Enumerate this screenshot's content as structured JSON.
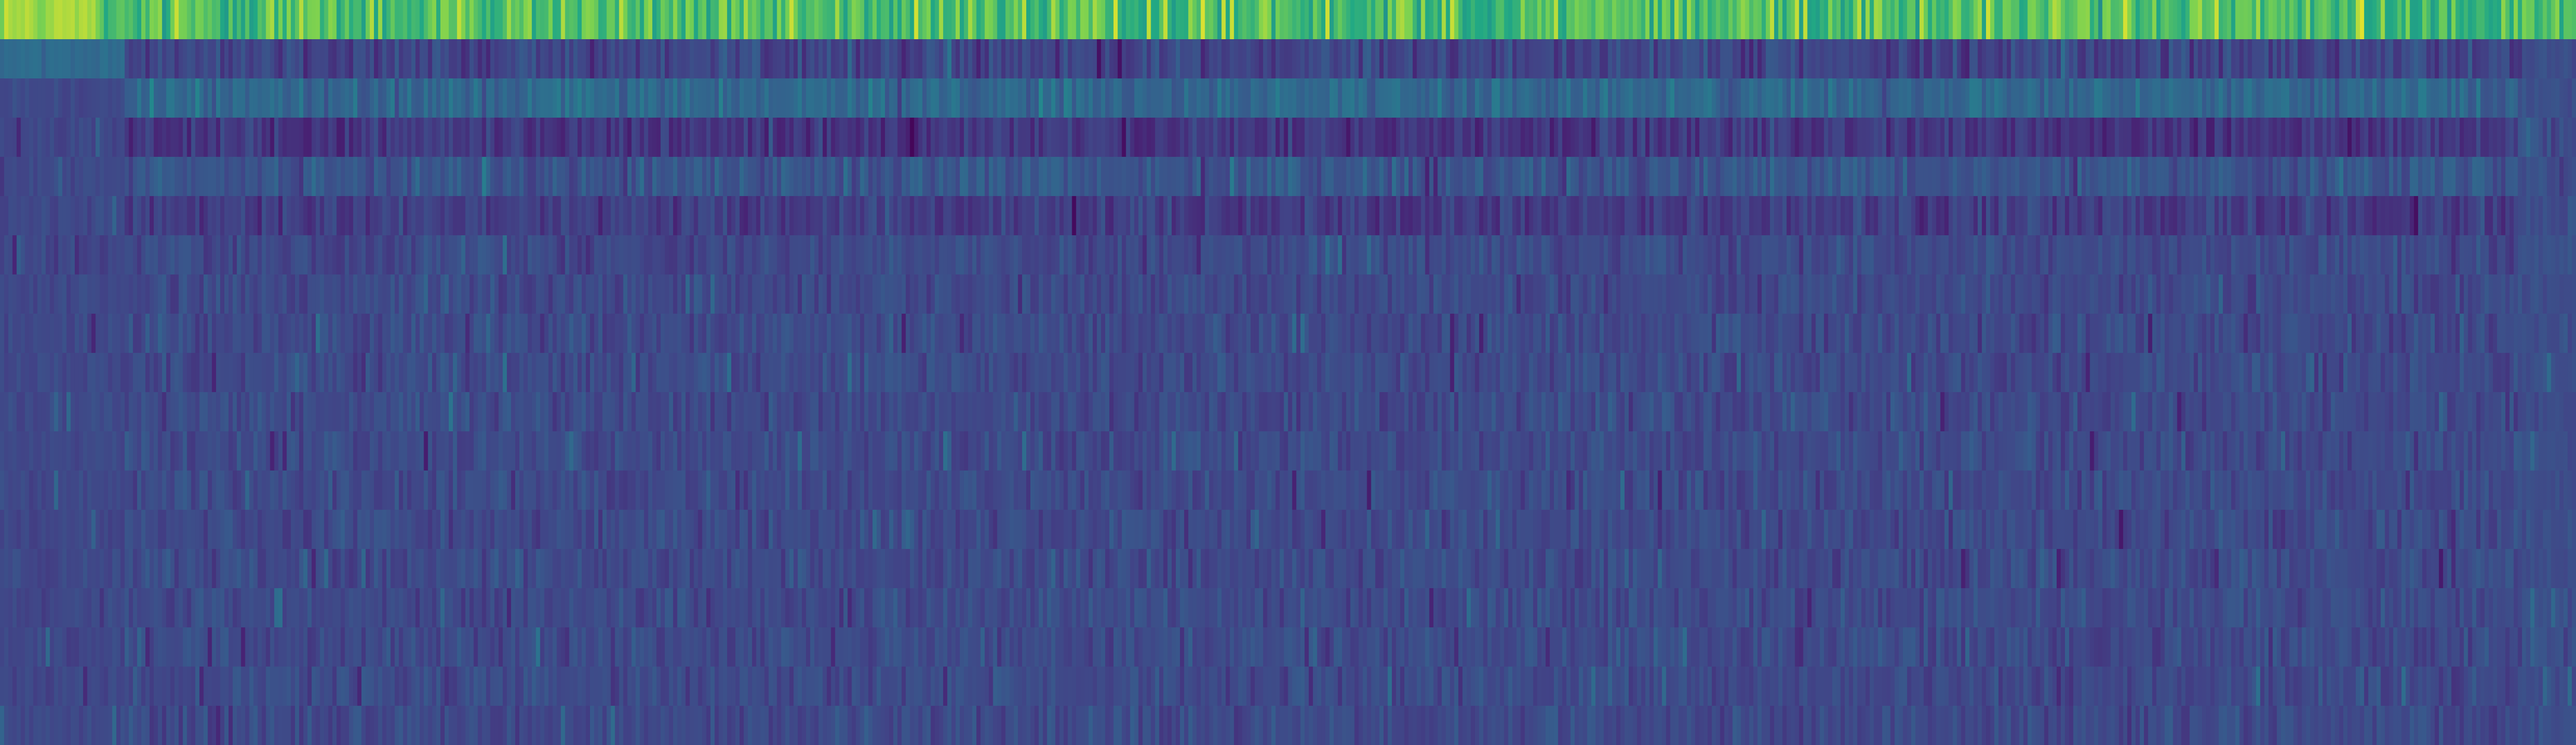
{
  "chart_data": {
    "type": "heatmap",
    "title": "",
    "xlabel": "",
    "ylabel": "",
    "colormap": "viridis",
    "value_range": [
      0,
      1
    ],
    "grid": false,
    "legend": "none",
    "n_columns": 620,
    "background_color": "#3b528b",
    "bands": [
      {
        "row_start": 0,
        "row_end": 1,
        "col_start": 0,
        "col_end": 24,
        "mean": 0.92,
        "spread": 0.03
      },
      {
        "row_start": 0,
        "row_end": 1,
        "col_start": 24,
        "col_end": 34,
        "mean": 0.78,
        "spread": 0.05
      },
      {
        "row_start": 0,
        "row_end": 1,
        "col_start": 34,
        "col_end": 620,
        "mean": 0.82,
        "spread": 0.08
      },
      {
        "row_start": 1,
        "row_end": 2,
        "col_start": 0,
        "col_end": 30,
        "mean": 0.44,
        "spread": 0.02
      },
      {
        "row_start": 1,
        "row_end": 2,
        "col_start": 30,
        "col_end": 620,
        "mean": 0.26,
        "spread": 0.07
      },
      {
        "row_start": 2,
        "row_end": 19,
        "col_start": 0,
        "col_end": 30,
        "mean": 0.27,
        "spread": 0.03
      },
      {
        "row_start": 2,
        "row_end": 3,
        "col_start": 30,
        "col_end": 620,
        "mean": 0.42,
        "spread": 0.06
      },
      {
        "row_start": 3,
        "row_end": 4,
        "col_start": 30,
        "col_end": 620,
        "mean": 0.2,
        "spread": 0.06
      },
      {
        "row_start": 4,
        "row_end": 5,
        "col_start": 30,
        "col_end": 620,
        "mean": 0.33,
        "spread": 0.06
      },
      {
        "row_start": 5,
        "row_end": 6,
        "col_start": 30,
        "col_end": 620,
        "mean": 0.23,
        "spread": 0.06
      },
      {
        "row_start": 6,
        "row_end": 19,
        "col_start": 30,
        "col_end": 620,
        "mean": 0.28,
        "spread": 0.05
      },
      {
        "row_start": 1,
        "row_end": 19,
        "col_start": 606,
        "col_end": 620,
        "mean": 0.3,
        "spread": 0.03
      }
    ],
    "n_rows": 19
  }
}
